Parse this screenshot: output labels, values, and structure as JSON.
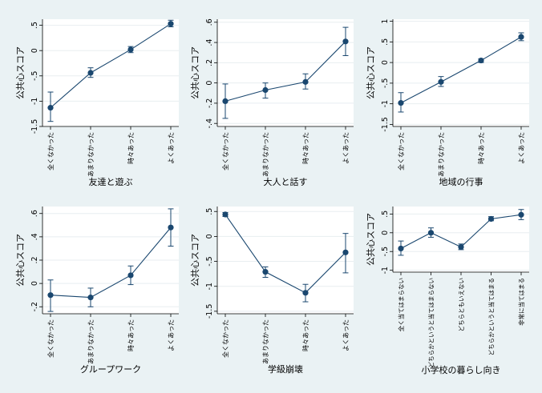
{
  "chart_data": [
    {
      "type": "line",
      "ylabel": "公共心スコア",
      "xlabel": "友達と遊ぶ",
      "categories": [
        "全くなかった",
        "あまりなかった",
        "時々あった",
        "よくあった"
      ],
      "yticks": [
        -1.5,
        -1,
        -0.5,
        0,
        0.5
      ],
      "ytick_labels": [
        "-1.5",
        "-1",
        "-.5",
        "0",
        ".5"
      ],
      "ylim": [
        -1.5,
        0.62
      ],
      "values": [
        -1.13,
        -0.44,
        0.02,
        0.53
      ],
      "ci_low": [
        -1.4,
        -0.53,
        -0.04,
        0.47
      ],
      "ci_high": [
        -0.82,
        -0.34,
        0.08,
        0.6
      ]
    },
    {
      "type": "line",
      "ylabel": "公共心スコア",
      "xlabel": "大人と話す",
      "categories": [
        "全くなかった",
        "あまりなかった",
        "時々あった",
        "よくあった"
      ],
      "yticks": [
        -0.4,
        -0.2,
        0,
        0.2,
        0.4,
        0.6
      ],
      "ytick_labels": [
        "-.4",
        "-.2",
        "0",
        ".2",
        ".4",
        ".6"
      ],
      "ylim": [
        -0.43,
        0.63
      ],
      "values": [
        -0.18,
        -0.07,
        0.01,
        0.41
      ],
      "ci_low": [
        -0.35,
        -0.15,
        -0.06,
        0.27
      ],
      "ci_high": [
        -0.01,
        0.0,
        0.09,
        0.55
      ]
    },
    {
      "type": "line",
      "ylabel": "公共心スコア",
      "xlabel": "地域の行事",
      "categories": [
        "全くなかった",
        "あまりなかった",
        "時々あった",
        "よくあった"
      ],
      "yticks": [
        -1.5,
        -1,
        -0.5,
        0,
        0.5,
        1
      ],
      "ytick_labels": [
        "-1.5",
        "-1",
        "-.5",
        "0",
        ".5",
        "1"
      ],
      "ylim": [
        -1.55,
        1.05
      ],
      "values": [
        -0.98,
        -0.47,
        0.05,
        0.62
      ],
      "ci_low": [
        -1.2,
        -0.58,
        0.0,
        0.53
      ],
      "ci_high": [
        -0.73,
        -0.34,
        0.09,
        0.72
      ]
    },
    {
      "type": "line",
      "ylabel": "公共心スコア",
      "xlabel": "グループワーク",
      "categories": [
        "全くなかった",
        "あまりなかった",
        "時々あった",
        "よくあった"
      ],
      "yticks": [
        -0.2,
        0,
        0.2,
        0.4,
        0.6
      ],
      "ytick_labels": [
        "-.2",
        "0",
        ".2",
        ".4",
        ".6"
      ],
      "ylim": [
        -0.26,
        0.66
      ],
      "values": [
        -0.1,
        -0.12,
        0.07,
        0.48
      ],
      "ci_low": [
        -0.24,
        -0.2,
        -0.01,
        0.32
      ],
      "ci_high": [
        0.03,
        -0.04,
        0.15,
        0.64
      ]
    },
    {
      "type": "line",
      "ylabel": "公共心スコア",
      "xlabel": "学級崩壊",
      "categories": [
        "全くなかった",
        "あまりなかった",
        "時々あった",
        "よくあった"
      ],
      "yticks": [
        -1.5,
        -1,
        -0.5,
        0,
        0.5
      ],
      "ytick_labels": [
        "-1.5",
        "-1",
        "-.5",
        "0",
        ".5"
      ],
      "ylim": [
        -1.55,
        0.6
      ],
      "values": [
        0.44,
        -0.71,
        -1.13,
        -0.32
      ],
      "ci_low": [
        0.4,
        -0.82,
        -1.31,
        -0.73
      ],
      "ci_high": [
        0.48,
        -0.61,
        -0.96,
        0.06
      ]
    },
    {
      "type": "line",
      "ylabel": "公共心スコア",
      "xlabel": "小学校の暮らし向き",
      "categories": [
        "全く当てはまらない",
        "どちらかというと当てはまらない",
        "どちらともいえない",
        "どちらかというと当てはまる",
        "非常に当てはまる"
      ],
      "yticks": [
        -1,
        -0.5,
        0,
        0.5
      ],
      "ytick_labels": [
        "-1",
        "-.5",
        "0",
        ".5"
      ],
      "ylim": [
        -1.05,
        0.7
      ],
      "values": [
        -0.42,
        0.0,
        -0.38,
        0.37,
        0.48
      ],
      "ci_low": [
        -0.6,
        -0.12,
        -0.45,
        0.32,
        0.35
      ],
      "ci_high": [
        -0.22,
        0.13,
        -0.3,
        0.43,
        0.62
      ]
    }
  ]
}
